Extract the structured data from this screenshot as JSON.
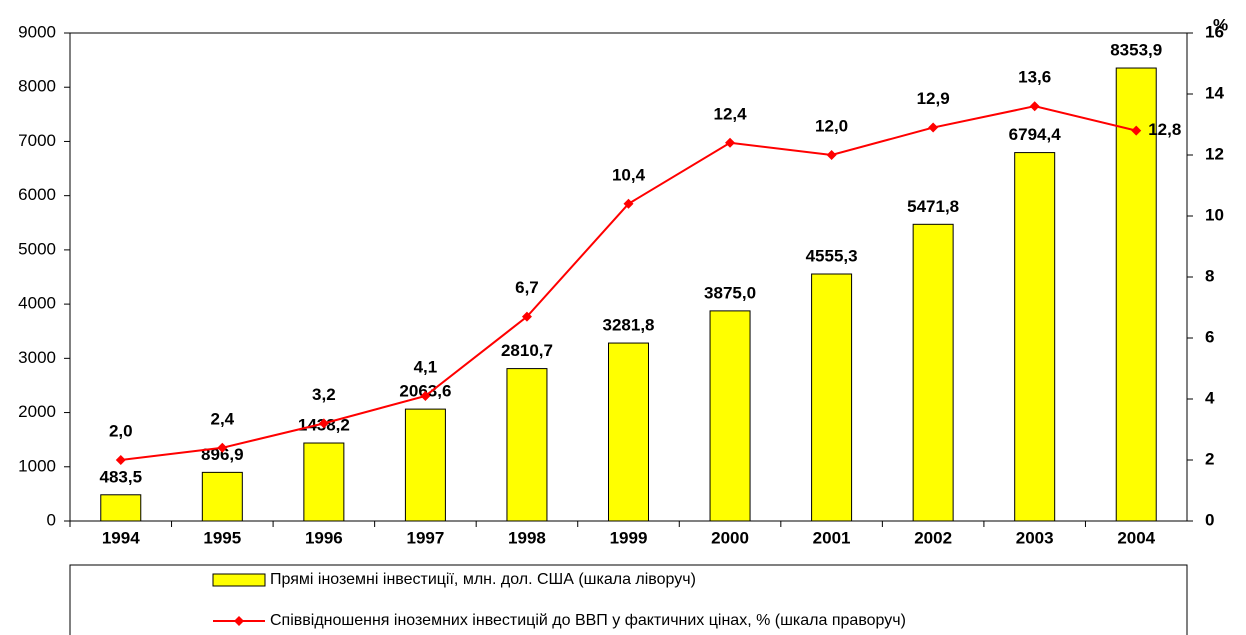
{
  "chart_data": {
    "type": "bar",
    "categories": [
      "1994",
      "1995",
      "1996",
      "1997",
      "1998",
      "1999",
      "2000",
      "2001",
      "2002",
      "2003",
      "2004"
    ],
    "series": [
      {
        "name": "Прямі іноземні інвестиції, млн. дол. США (шкала ліворуч)",
        "type": "bar",
        "color": "#ffff00",
        "values": [
          483.5,
          896.9,
          1438.2,
          2063.6,
          2810.7,
          3281.8,
          3875.0,
          4555.3,
          5471.8,
          6794.4,
          8353.9
        ],
        "value_labels": [
          "483,5",
          "896,9",
          "1438,2",
          "2063,6",
          "2810,7",
          "3281,8",
          "3875,0",
          "4555,3",
          "5471,8",
          "6794,4",
          "8353,9"
        ]
      },
      {
        "name": "Співвідношення іноземних інвестицій до ВВП у фактичних цінах, % (шкала праворуч)",
        "type": "line",
        "axis": "y2",
        "color": "#ff0000",
        "values": [
          2.0,
          2.4,
          3.2,
          4.1,
          6.7,
          10.4,
          12.4,
          12.0,
          12.9,
          13.6,
          12.8
        ],
        "value_labels": [
          "2,0",
          "2,4",
          "3,2",
          "4,1",
          "6,7",
          "10,4",
          "12,4",
          "12,0",
          "12,9",
          "13,6",
          "12,8"
        ]
      }
    ],
    "ylim": [
      0,
      9000
    ],
    "yticks": [
      0,
      1000,
      2000,
      3000,
      4000,
      5000,
      6000,
      7000,
      8000,
      9000
    ],
    "y2lim": [
      0,
      16
    ],
    "y2ticks": [
      0,
      2,
      4,
      6,
      8,
      10,
      12,
      14,
      16
    ],
    "y2label": "%",
    "grid": false
  }
}
